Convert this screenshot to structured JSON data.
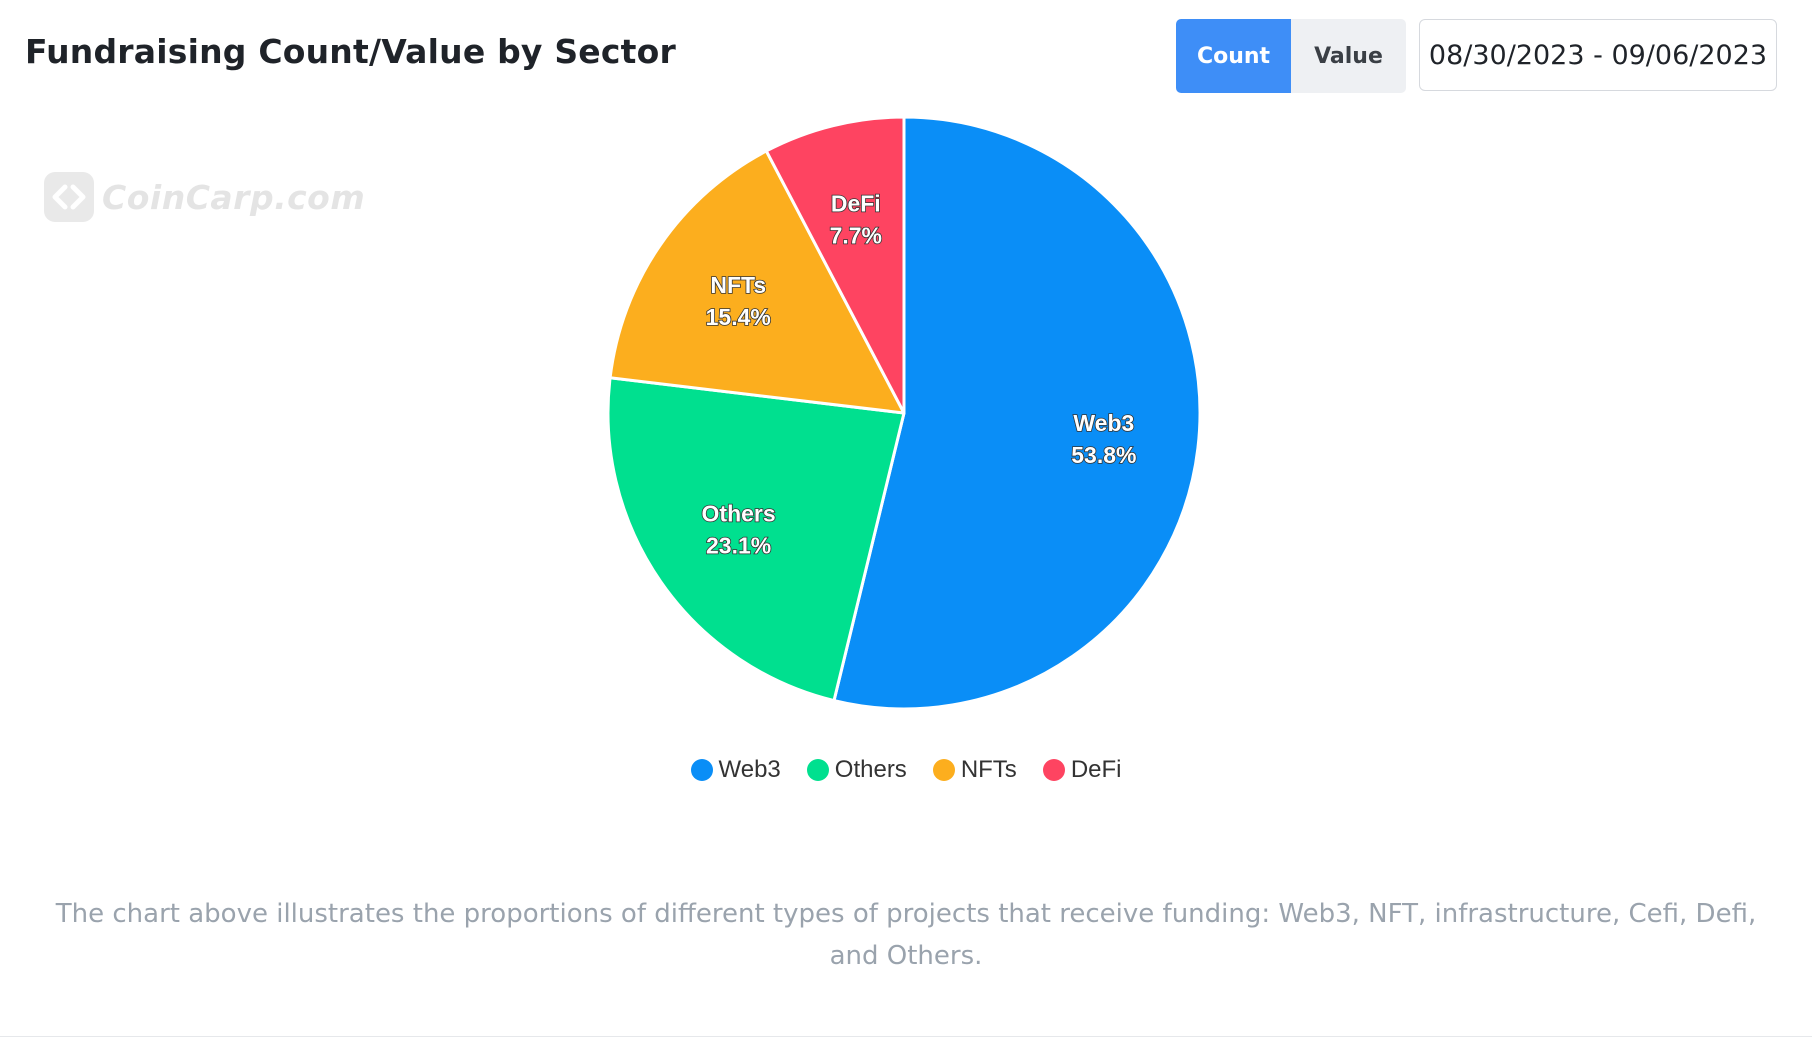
{
  "header": {
    "title": "Fundraising Count/Value by Sector",
    "toggle": {
      "count_label": "Count",
      "value_label": "Value",
      "active": "Count"
    },
    "date_range": "08/30/2023 - 09/06/2023"
  },
  "watermark": {
    "text": "CoinCarp.com"
  },
  "chart_data": {
    "type": "pie",
    "slices": [
      {
        "label": "Web3",
        "value": 53.8,
        "value_label": "53.8%",
        "color": "#0a8ef7"
      },
      {
        "label": "Others",
        "value": 23.1,
        "value_label": "23.1%",
        "color": "#00e08f"
      },
      {
        "label": "NFTs",
        "value": 15.4,
        "value_label": "15.4%",
        "color": "#fcae1e"
      },
      {
        "label": "DeFi",
        "value": 7.7,
        "value_label": "7.7%",
        "color": "#fe4461"
      }
    ],
    "legend": [
      "Web3",
      "Others",
      "NFTs",
      "DeFi"
    ],
    "legend_position": "bottom",
    "start_angle": "top",
    "direction": "clockwise"
  },
  "caption": "The chart above illustrates the proportions of different types of projects that receive funding: Web3, NFT, infrastructure, Cefi, Defi, and Others."
}
